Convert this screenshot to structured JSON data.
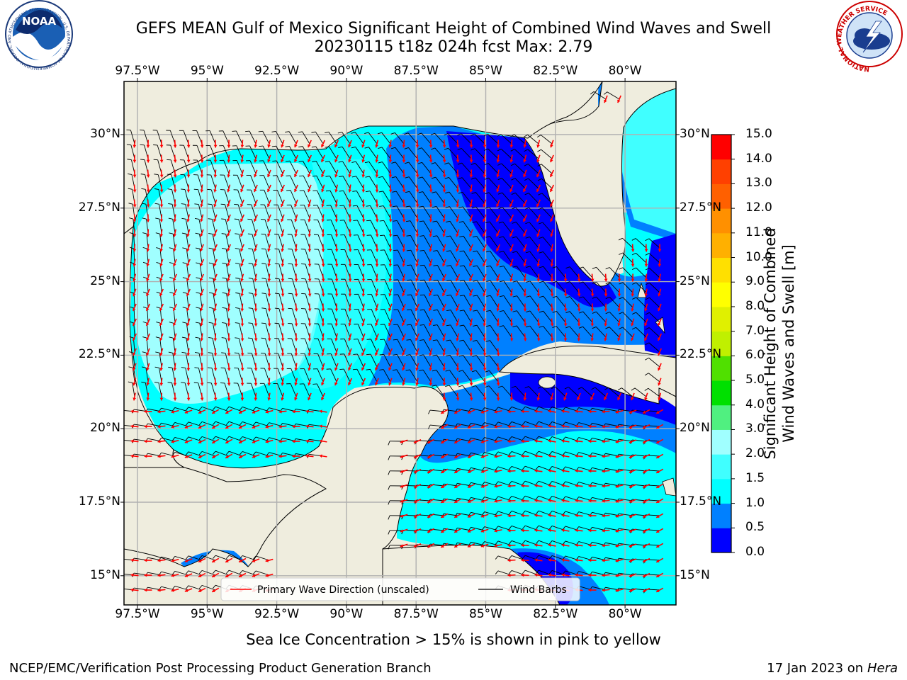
{
  "title": {
    "line1": "GEFS MEAN Gulf of Mexico Significant Height of Combined Wind Waves and Swell",
    "line2": "20230115 t18z 024h fcst   Max: 2.79"
  },
  "logos": {
    "noaa": "NOAA",
    "noaa_ring_text": "NATIONAL OCEANIC AND ATMOSPHERIC ADMINISTRATION · U.S. DEPARTMENT OF COMMERCE",
    "nws_ring_text": "NATIONAL WEATHER SERVICE"
  },
  "map": {
    "lon_labels": [
      "97.5°W",
      "95°W",
      "92.5°W",
      "90°W",
      "87.5°W",
      "85°W",
      "82.5°W",
      "80°W"
    ],
    "lat_labels": [
      "30°N",
      "27.5°N",
      "25°N",
      "22.5°N",
      "20°N",
      "17.5°N",
      "15°N"
    ],
    "legend": {
      "wave_direction": "Primary Wave Direction (unscaled)",
      "wind_barbs": "Wind Barbs"
    },
    "colors": {
      "land": "#efedde",
      "wave_arrow": "#ff0000",
      "wind_barb": "#000000",
      "grid": "#b0b0b0"
    }
  },
  "colorbar": {
    "label_line1": "Significant Height of Combined",
    "label_line2": "Wind Waves and Swell [m]",
    "ticks": [
      "0.0",
      "0.5",
      "1.0",
      "1.5",
      "2.0",
      "3.0",
      "4.0",
      "5.0",
      "6.0",
      "7.0",
      "8.0",
      "9.0",
      "10.0",
      "11.0",
      "12.0",
      "13.0",
      "14.0",
      "15.0"
    ],
    "bins": [
      {
        "range": "0.0-0.5",
        "color": "#0000ff"
      },
      {
        "range": "0.5-1.0",
        "color": "#0080ff"
      },
      {
        "range": "1.0-1.5",
        "color": "#00ffff"
      },
      {
        "range": "1.5-2.0",
        "color": "#40ffff"
      },
      {
        "range": "2.0-3.0",
        "color": "#a0ffff"
      },
      {
        "range": "3.0-4.0",
        "color": "#50f080"
      },
      {
        "range": "4.0-5.0",
        "color": "#00e000"
      },
      {
        "range": "5.0-6.0",
        "color": "#50e000"
      },
      {
        "range": "6.0-7.0",
        "color": "#c0f000"
      },
      {
        "range": "7.0-8.0",
        "color": "#e0f000"
      },
      {
        "range": "8.0-9.0",
        "color": "#ffff00"
      },
      {
        "range": "9.0-10.0",
        "color": "#ffe000"
      },
      {
        "range": "10.0-11.0",
        "color": "#ffb000"
      },
      {
        "range": "11.0-12.0",
        "color": "#ff9000"
      },
      {
        "range": "12.0-13.0",
        "color": "#ff6000"
      },
      {
        "range": "13.0-14.0",
        "color": "#ff4000"
      },
      {
        "range": "14.0-15.0",
        "color": "#ff0000"
      }
    ]
  },
  "caption": "Sea Ice Concentration > 15% is shown in pink to yellow",
  "footer": {
    "left": "NCEP/EMC/Verification Post Processing Product Generation Branch",
    "right_date": "17 Jan 2023 on ",
    "right_host": "Hera"
  }
}
